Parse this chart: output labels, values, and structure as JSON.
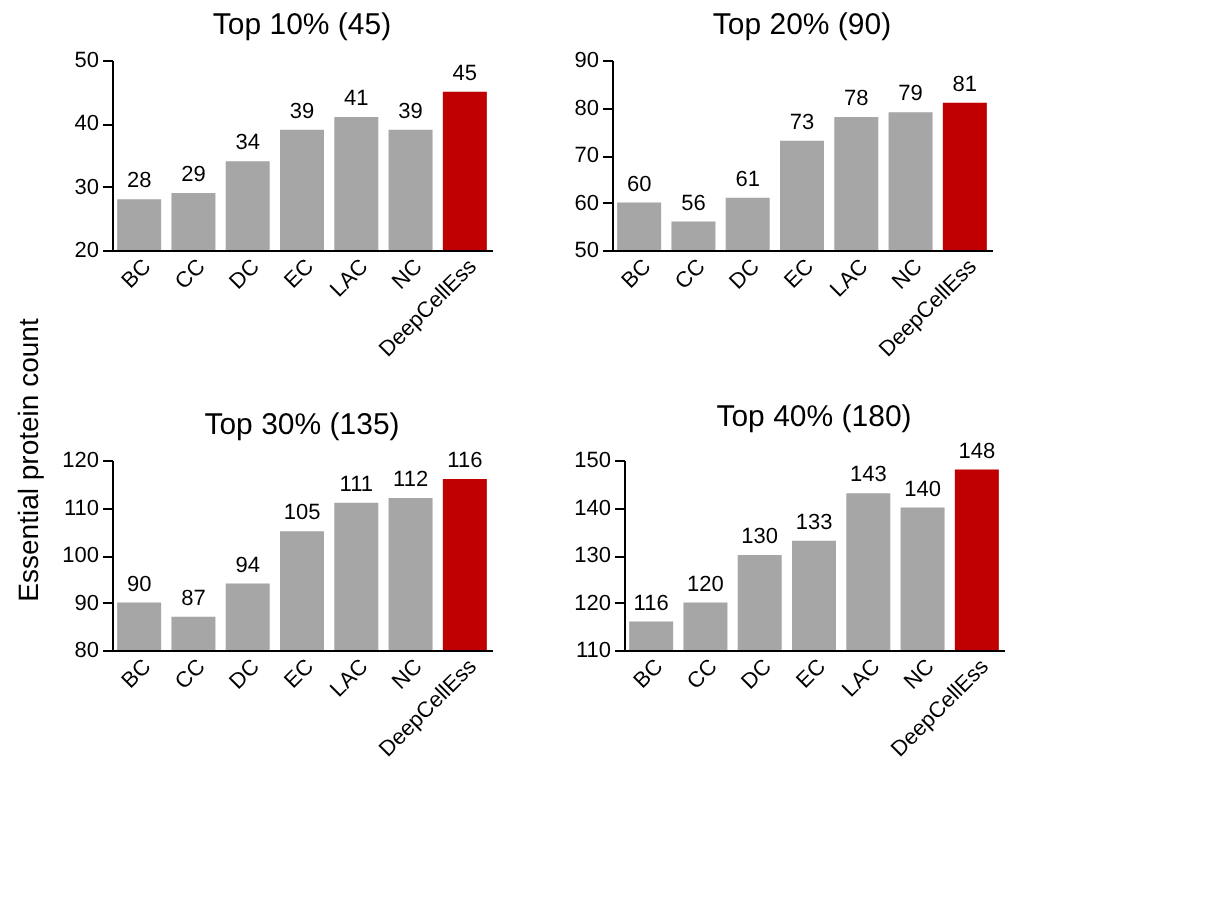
{
  "chart_data": [
    {
      "type": "bar",
      "title": "Top 10% (45)",
      "ylabel": "Essential protein count",
      "categories": [
        "BC",
        "CC",
        "DC",
        "EC",
        "LAC",
        "NC",
        "DeepCellEss"
      ],
      "values": [
        28,
        29,
        34,
        39,
        41,
        39,
        45
      ],
      "colors": [
        "#a6a6a6",
        "#a6a6a6",
        "#a6a6a6",
        "#a6a6a6",
        "#a6a6a6",
        "#a6a6a6",
        "#c00000"
      ],
      "ylim": [
        20,
        50
      ],
      "yticks": [
        20,
        30,
        40,
        50
      ],
      "data_labels": true,
      "grid": false
    },
    {
      "type": "bar",
      "title": "Top 20% (90)",
      "categories": [
        "BC",
        "CC",
        "DC",
        "EC",
        "LAC",
        "NC",
        "DeepCellEss"
      ],
      "values": [
        60,
        56,
        61,
        73,
        78,
        79,
        81
      ],
      "colors": [
        "#a6a6a6",
        "#a6a6a6",
        "#a6a6a6",
        "#a6a6a6",
        "#a6a6a6",
        "#a6a6a6",
        "#c00000"
      ],
      "ylim": [
        50,
        90
      ],
      "yticks": [
        50,
        60,
        70,
        80,
        90
      ],
      "data_labels": true,
      "grid": false
    },
    {
      "type": "bar",
      "title": "Top 30% (135)",
      "categories": [
        "BC",
        "CC",
        "DC",
        "EC",
        "LAC",
        "NC",
        "DeepCellEss"
      ],
      "values": [
        90,
        87,
        94,
        105,
        111,
        112,
        116
      ],
      "colors": [
        "#a6a6a6",
        "#a6a6a6",
        "#a6a6a6",
        "#a6a6a6",
        "#a6a6a6",
        "#a6a6a6",
        "#c00000"
      ],
      "ylim": [
        80,
        120
      ],
      "yticks": [
        80,
        90,
        100,
        110,
        120
      ],
      "data_labels": true,
      "grid": false
    },
    {
      "type": "bar",
      "title": "Top 40% (180)",
      "categories": [
        "BC",
        "CC",
        "DC",
        "EC",
        "LAC",
        "NC",
        "DeepCellEss"
      ],
      "values": [
        116,
        120,
        130,
        133,
        143,
        140,
        148
      ],
      "colors": [
        "#a6a6a6",
        "#a6a6a6",
        "#a6a6a6",
        "#a6a6a6",
        "#a6a6a6",
        "#a6a6a6",
        "#c00000"
      ],
      "ylim": [
        110,
        150
      ],
      "yticks": [
        110,
        120,
        130,
        140,
        150
      ],
      "data_labels": true,
      "grid": false
    }
  ]
}
